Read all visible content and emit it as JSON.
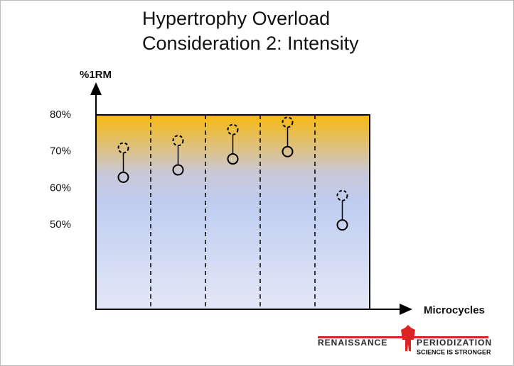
{
  "chart_data": {
    "type": "dumbbell",
    "title": "Hypertrophy Overload",
    "subtitle": "Consideration 2: Intensity",
    "y_label": "%1RM",
    "x_label": "Microcycles",
    "categories": [
      null,
      null,
      null,
      null,
      null
    ],
    "series": [
      {
        "color": "#000000",
        "dashed": false,
        "values": [
          63,
          65,
          68,
          70,
          50
        ]
      },
      {
        "color": "#000000",
        "dashed": true,
        "values": [
          71,
          73,
          76,
          78,
          58
        ]
      }
    ],
    "ylim": [
      27,
      80
    ],
    "yticks": [
      {
        "value": 50,
        "label": "50%"
      },
      {
        "value": 60,
        "label": "60%"
      },
      {
        "value": 70,
        "label": "70%"
      },
      {
        "value": 80,
        "label": "80%"
      }
    ],
    "logo": {
      "left": "RENAISSANCE",
      "right": "PERIODIZATION",
      "tagline": "SCIENCE IS STRONGER"
    }
  }
}
